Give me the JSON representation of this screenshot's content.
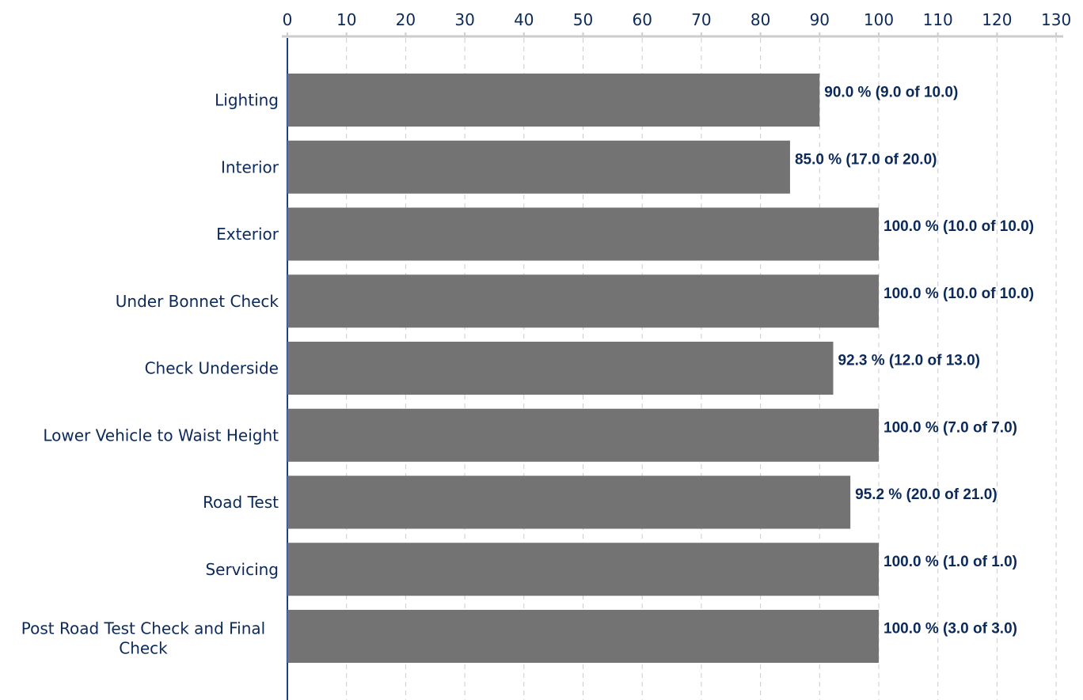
{
  "chart_data": {
    "type": "bar",
    "orientation": "horizontal",
    "categories": [
      "Lighting",
      "Interior",
      "Exterior",
      "Under Bonnet Check",
      "Check Underside",
      "Lower Vehicle to Waist Height",
      "Road Test",
      "Servicing",
      "Post Road Test Check and Final Check"
    ],
    "values": [
      90.0,
      85.0,
      100.0,
      100.0,
      92.3,
      100.0,
      95.2,
      100.0,
      100.0
    ],
    "data_labels": [
      "90.0 % (9.0 of 10.0)",
      "85.0 % (17.0 of 20.0)",
      "100.0 % (10.0 of 10.0)",
      "100.0 % (10.0 of 10.0)",
      "92.3 % (12.0 of 13.0)",
      "100.0 % (7.0 of 7.0)",
      "95.2 % (20.0 of 21.0)",
      "100.0 % (1.0 of 1.0)",
      "100.0 % (3.0 of 3.0)"
    ],
    "xlim": [
      0,
      130
    ],
    "x_ticks": [
      0,
      10,
      20,
      30,
      40,
      50,
      60,
      70,
      80,
      90,
      100,
      110,
      120,
      130
    ],
    "x_axis_position": "top",
    "grid": true,
    "legend": "none",
    "title": "",
    "xlabel": "",
    "ylabel": ""
  },
  "colors": {
    "bar": "#737373",
    "text": "#0b2a5b",
    "grid": "#cccccc",
    "axis_line": "#cccccc",
    "zero_line": "#1f3f88"
  }
}
